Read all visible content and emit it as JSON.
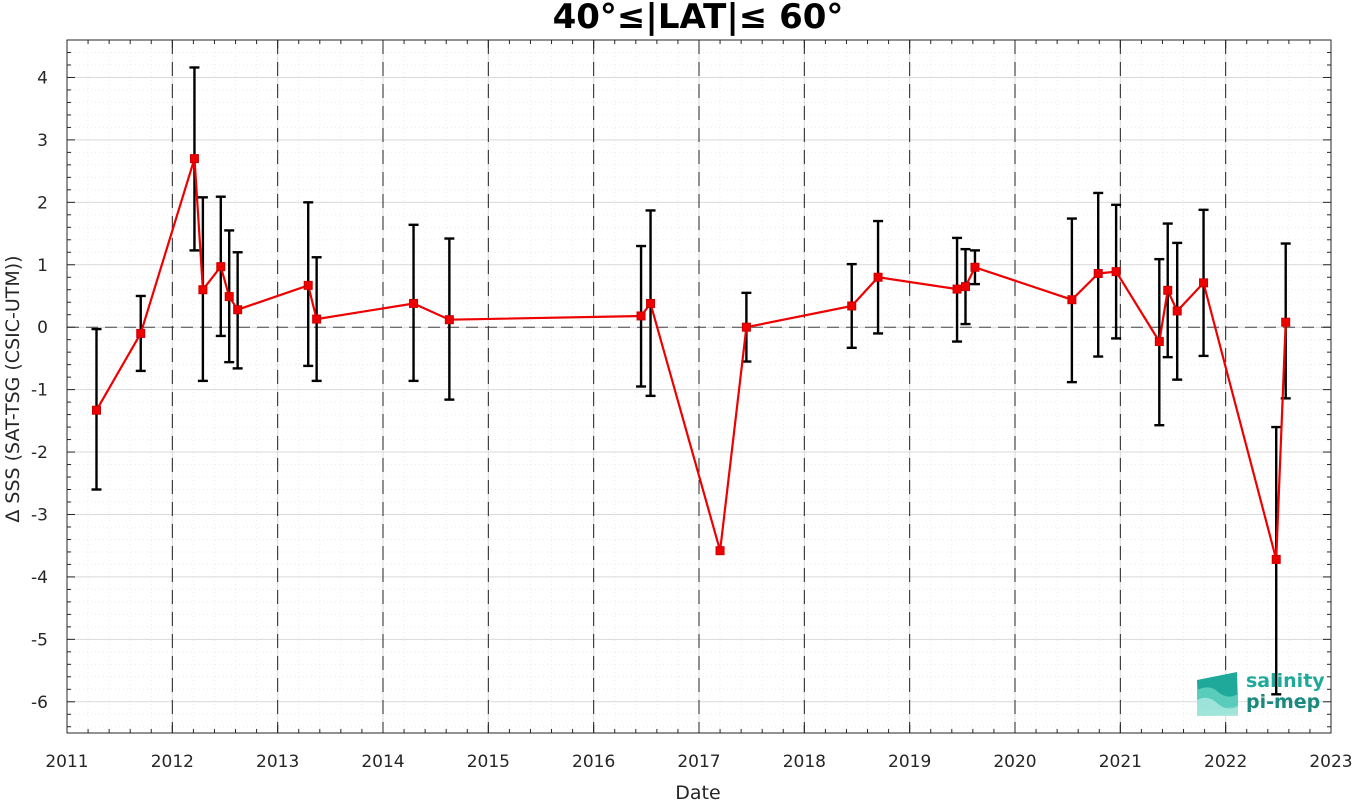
{
  "chart_data": {
    "type": "line",
    "title": "40°≤|LAT|≤ 60°",
    "xlabel": "Date",
    "ylabel": "Δ SSS (SAT-TSG (CSIC-UTM))",
    "xlim": [
      2011,
      2023
    ],
    "ylim": [
      -6.5,
      4.6
    ],
    "x_ticks": [
      "2011",
      "2012",
      "2013",
      "2014",
      "2015",
      "2016",
      "2017",
      "2018",
      "2019",
      "2020",
      "2021",
      "2022",
      "2023"
    ],
    "y_ticks": [
      "-6",
      "-5",
      "-4",
      "-3",
      "-2",
      "-1",
      "0",
      "1",
      "2",
      "3",
      "4"
    ],
    "grid": true,
    "vertical_dashed_lines_at": [
      2012,
      2013,
      2014,
      2015,
      2016,
      2017,
      2018,
      2019,
      2020,
      2021,
      2022
    ],
    "zero_reference_line": 0,
    "series": [
      {
        "color": "#ee0000",
        "marker": "square",
        "x": [
          2011.28,
          2011.7,
          2012.21,
          2012.29,
          2012.46,
          2012.54,
          2012.62,
          2013.29,
          2013.37,
          2014.29,
          2014.63,
          2016.45,
          2016.54,
          2017.2,
          2017.45,
          2018.45,
          2018.7,
          2019.45,
          2019.53,
          2019.62,
          2020.54,
          2020.79,
          2020.96,
          2021.37,
          2021.45,
          2021.54,
          2021.79,
          2022.48,
          2022.57
        ],
        "y": [
          -1.33,
          -0.1,
          2.7,
          0.6,
          0.97,
          0.49,
          0.28,
          0.67,
          0.13,
          0.38,
          0.12,
          0.18,
          0.38,
          -3.58,
          0.0,
          0.34,
          0.8,
          0.61,
          0.65,
          0.96,
          0.44,
          0.86,
          0.89,
          -0.23,
          0.59,
          0.26,
          0.71,
          -3.72,
          0.08
        ],
        "error_low": [
          -2.6,
          -0.7,
          1.23,
          -0.86,
          -0.14,
          -0.56,
          -0.66,
          -0.62,
          -0.86,
          -0.86,
          -1.16,
          -0.95,
          -1.1,
          -3.58,
          -0.55,
          -0.33,
          -0.1,
          -0.23,
          0.05,
          0.69,
          -0.88,
          -0.47,
          -0.18,
          -1.57,
          -0.48,
          -0.84,
          -0.46,
          -1.6,
          -1.14
        ],
        "error_high": [
          -0.03,
          0.5,
          4.16,
          2.08,
          2.09,
          1.55,
          1.2,
          2.0,
          1.12,
          1.64,
          1.42,
          1.3,
          1.87,
          -3.58,
          0.55,
          1.01,
          1.7,
          1.43,
          1.25,
          1.23,
          1.74,
          2.15,
          1.96,
          1.09,
          1.66,
          1.35,
          1.88,
          -5.88,
          1.34
        ]
      }
    ]
  },
  "logo": {
    "line1": "salinity",
    "line2": "pi-mep",
    "colors": [
      "#1fa99a",
      "#5fcfc0",
      "#a5e6dc"
    ]
  }
}
